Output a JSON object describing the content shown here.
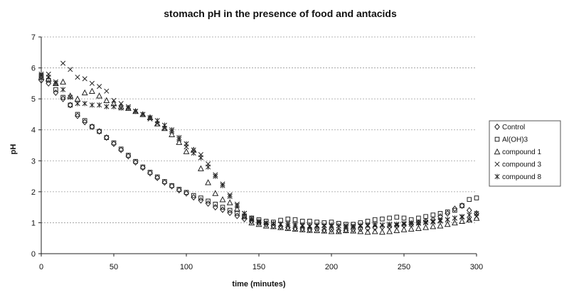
{
  "chart_data": {
    "type": "scatter",
    "title": "stomach pH in the presence of food and antacids",
    "xlabel": "time (minutes)",
    "ylabel": "pH",
    "xlim": [
      0,
      300
    ],
    "ylim": [
      0,
      7
    ],
    "x_ticks": [
      0,
      50,
      100,
      150,
      200,
      250,
      300
    ],
    "y_ticks": [
      0,
      1,
      2,
      3,
      4,
      5,
      6,
      7
    ],
    "grid": "horizontal",
    "legend_position": "right",
    "x": [
      0,
      5,
      10,
      15,
      20,
      25,
      30,
      35,
      40,
      45,
      50,
      55,
      60,
      65,
      70,
      75,
      80,
      85,
      90,
      95,
      100,
      105,
      110,
      115,
      120,
      125,
      130,
      135,
      140,
      145,
      150,
      155,
      160,
      165,
      170,
      175,
      180,
      185,
      190,
      195,
      200,
      205,
      210,
      215,
      220,
      225,
      230,
      235,
      240,
      245,
      250,
      255,
      260,
      265,
      270,
      275,
      280,
      285,
      290,
      295,
      300
    ],
    "series": [
      {
        "name": "Control",
        "marker": "diamond",
        "values": [
          5.6,
          5.5,
          5.2,
          5.0,
          4.8,
          4.45,
          4.25,
          4.1,
          3.95,
          3.75,
          3.55,
          3.35,
          3.15,
          2.95,
          2.78,
          2.6,
          2.45,
          2.3,
          2.18,
          2.05,
          1.95,
          1.82,
          1.72,
          1.62,
          1.5,
          1.42,
          1.32,
          1.22,
          1.12,
          1.05,
          1.0,
          0.95,
          0.9,
          0.88,
          0.85,
          0.82,
          0.8,
          0.78,
          0.8,
          0.76,
          0.78,
          0.75,
          0.76,
          0.78,
          0.8,
          0.82,
          0.84,
          0.86,
          0.88,
          0.9,
          0.92,
          0.95,
          1.0,
          1.05,
          1.1,
          1.2,
          1.3,
          1.45,
          1.55,
          1.4,
          1.3
        ]
      },
      {
        "name": "Al(OH)3",
        "marker": "square",
        "values": [
          5.75,
          5.6,
          5.3,
          5.05,
          4.8,
          4.5,
          4.3,
          4.1,
          3.95,
          3.75,
          3.58,
          3.38,
          3.18,
          2.98,
          2.8,
          2.63,
          2.48,
          2.33,
          2.2,
          2.08,
          1.98,
          1.88,
          1.8,
          1.7,
          1.6,
          1.5,
          1.4,
          1.3,
          1.22,
          1.15,
          1.1,
          1.05,
          1.02,
          1.08,
          1.12,
          1.1,
          1.05,
          1.05,
          1.02,
          1.0,
          1.02,
          0.98,
          0.95,
          0.95,
          1.0,
          1.05,
          1.1,
          1.12,
          1.15,
          1.18,
          1.15,
          1.1,
          1.15,
          1.2,
          1.25,
          1.3,
          1.35,
          1.4,
          1.55,
          1.75,
          1.8
        ]
      },
      {
        "name": "compound 1",
        "marker": "triangle",
        "values": [
          5.7,
          5.65,
          5.5,
          5.55,
          5.1,
          5.0,
          5.2,
          5.25,
          5.1,
          4.95,
          4.85,
          4.75,
          4.7,
          4.6,
          4.5,
          4.4,
          4.2,
          4.05,
          3.85,
          3.6,
          3.3,
          3.35,
          2.75,
          2.3,
          1.95,
          1.75,
          1.65,
          1.45,
          1.2,
          1.0,
          0.95,
          0.9,
          0.88,
          0.85,
          0.82,
          0.8,
          0.78,
          0.76,
          0.75,
          0.74,
          0.72,
          0.72,
          0.75,
          0.74,
          0.72,
          0.7,
          0.72,
          0.7,
          0.72,
          0.75,
          0.78,
          0.8,
          0.82,
          0.85,
          0.88,
          0.9,
          0.95,
          1.0,
          1.05,
          1.1,
          1.15
        ]
      },
      {
        "name": "compound 3",
        "marker": "x",
        "values": [
          5.75,
          5.8,
          5.55,
          6.15,
          5.95,
          5.7,
          5.65,
          5.5,
          5.4,
          5.25,
          4.95,
          4.85,
          4.75,
          4.6,
          4.5,
          4.35,
          4.2,
          4.05,
          3.95,
          3.7,
          3.45,
          3.35,
          3.2,
          2.9,
          2.55,
          2.25,
          1.9,
          1.6,
          1.3,
          1.1,
          1.02,
          1.0,
          0.98,
          0.95,
          0.92,
          0.9,
          0.9,
          0.88,
          0.9,
          0.92,
          0.88,
          0.9,
          0.88,
          0.9,
          0.92,
          0.9,
          0.9,
          0.92,
          0.9,
          0.92,
          0.95,
          0.95,
          0.98,
          1.0,
          1.02,
          1.05,
          1.1,
          1.15,
          1.18,
          1.1,
          1.2
        ]
      },
      {
        "name": "compound 8",
        "marker": "star",
        "values": [
          5.8,
          5.7,
          5.5,
          5.3,
          5.05,
          4.85,
          4.85,
          4.8,
          4.8,
          4.75,
          4.75,
          4.7,
          4.7,
          4.6,
          4.5,
          4.4,
          4.3,
          4.15,
          4.0,
          3.75,
          3.55,
          3.25,
          3.1,
          2.8,
          2.5,
          2.2,
          1.85,
          1.55,
          1.3,
          1.15,
          1.05,
          1.0,
          0.98,
          0.95,
          0.98,
          0.95,
          0.92,
          0.9,
          0.92,
          0.9,
          0.92,
          0.9,
          0.9,
          0.88,
          0.9,
          0.92,
          0.95,
          0.92,
          0.95,
          0.95,
          0.98,
          1.0,
          1.0,
          1.02,
          1.05,
          1.08,
          1.1,
          1.15,
          1.2,
          1.25,
          1.3
        ]
      }
    ]
  }
}
